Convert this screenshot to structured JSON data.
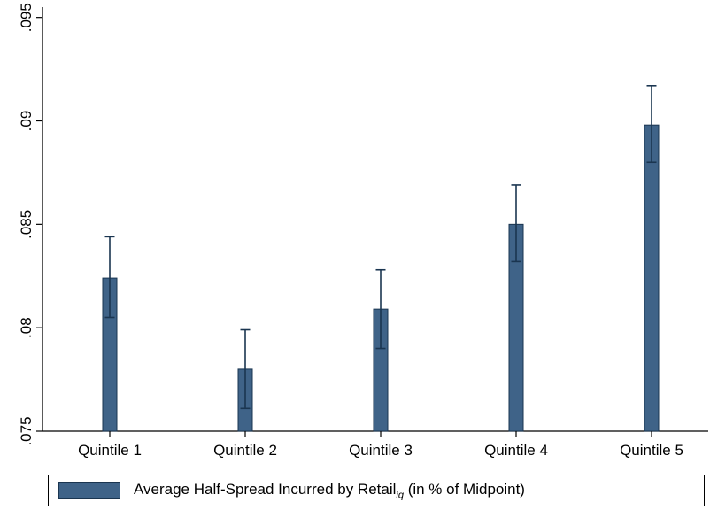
{
  "chart_data": {
    "type": "bar",
    "categories": [
      "Quintile 1",
      "Quintile 2",
      "Quintile 3",
      "Quintile 4",
      "Quintile 5"
    ],
    "series": [
      {
        "name": "Average Half-Spread Incurred by Retail_iq (in % of Midpoint)",
        "values": [
          0.0824,
          0.078,
          0.0809,
          0.085,
          0.0898
        ],
        "error_low": [
          0.0805,
          0.0761,
          0.079,
          0.0832,
          0.088
        ],
        "error_high": [
          0.0844,
          0.0799,
          0.0828,
          0.0869,
          0.0917
        ]
      }
    ],
    "ylim": [
      0.075,
      0.0955
    ],
    "yticks": [
      0.075,
      0.08,
      0.085,
      0.09,
      0.095
    ],
    "ytick_labels": [
      ".075",
      ".08",
      ".085",
      ".09",
      ".095"
    ],
    "title": "",
    "xlabel": "",
    "ylabel": "",
    "grid": false,
    "legend_position": "bottom",
    "bar_base": 0.075,
    "colors": {
      "bar_fill": "#3f6388",
      "bar_edge": "#1a3550",
      "error_bar": "#1a3550"
    }
  },
  "legend": {
    "label_main": "Average Half-Spread Incurred by Retail",
    "label_sub": "iq",
    "label_tail": " (in % of Midpoint)"
  }
}
